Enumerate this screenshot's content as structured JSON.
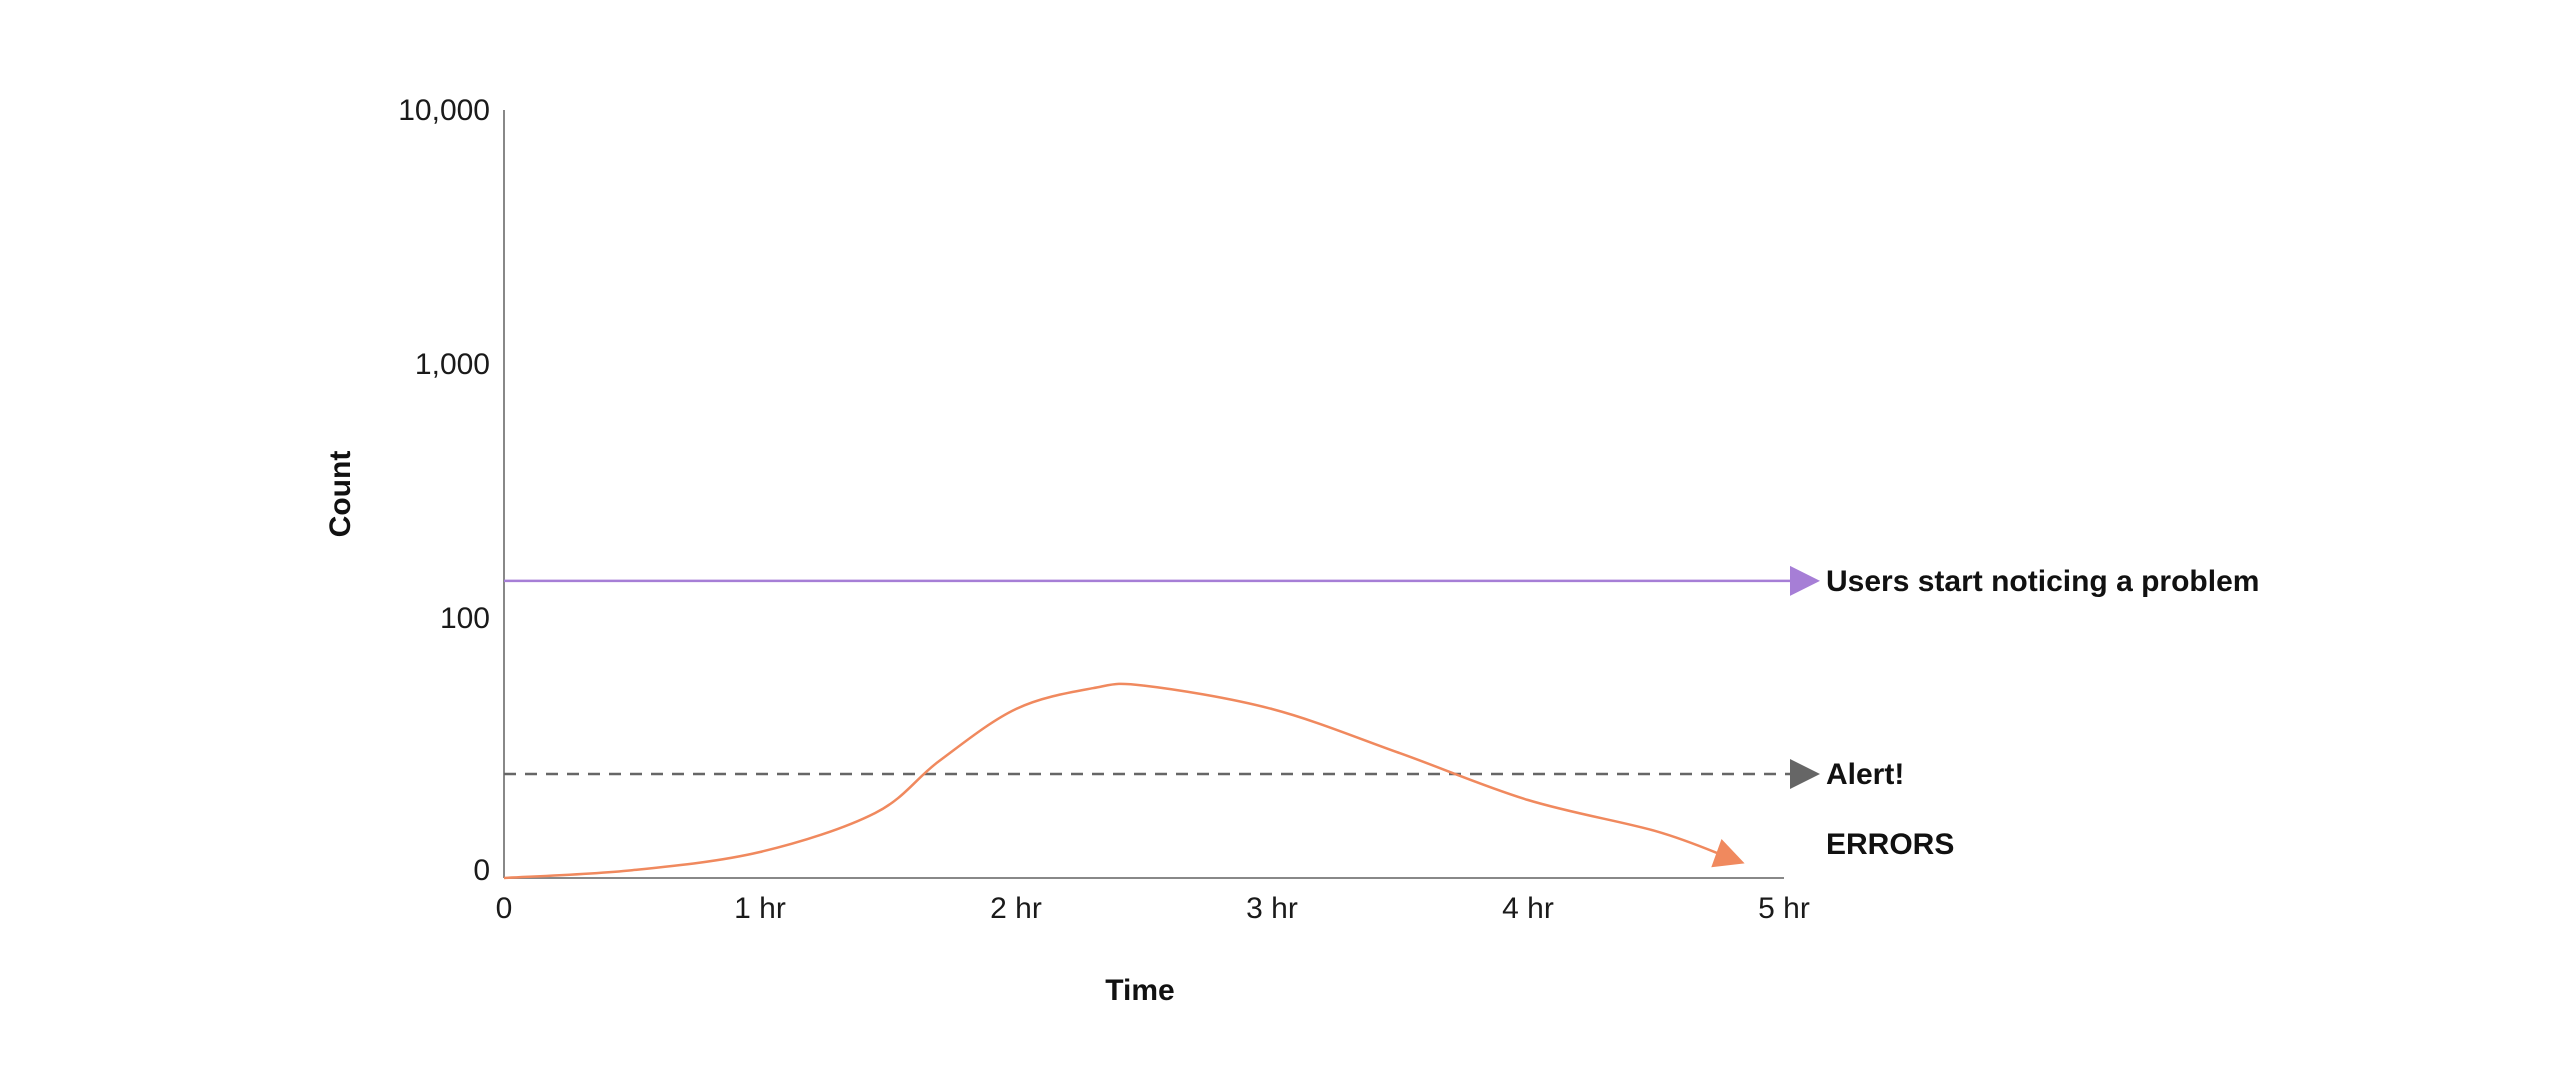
{
  "chart_data": {
    "type": "line",
    "xlabel": "Time",
    "ylabel": "Count",
    "x_ticks": [
      "0",
      "1 hr",
      "2 hr",
      "3 hr",
      "4 hr",
      "5 hr"
    ],
    "xlim": [
      0,
      5
    ],
    "y_ticks": [
      "0",
      "100",
      "1,000",
      "10,000"
    ],
    "y_scale": "log",
    "grid": false,
    "series": [
      {
        "name": "Users start noticing a problem",
        "style": "solid",
        "color": "#a67ed6",
        "x": [
          0,
          5
        ],
        "y": [
          140,
          140
        ]
      },
      {
        "name": "Alert!",
        "style": "dashed",
        "color": "#666666",
        "x": [
          0,
          5
        ],
        "y": [
          40,
          40
        ]
      },
      {
        "name": "ERRORS",
        "style": "solid",
        "color": "#f0895e",
        "x": [
          0,
          0.5,
          1.0,
          1.45,
          1.7,
          2.0,
          2.3,
          2.5,
          3.0,
          3.5,
          4.0,
          4.5,
          4.78
        ],
        "y": [
          0,
          3,
          10,
          25,
          45,
          65,
          73,
          74,
          65,
          48,
          30,
          18,
          8
        ]
      }
    ]
  }
}
